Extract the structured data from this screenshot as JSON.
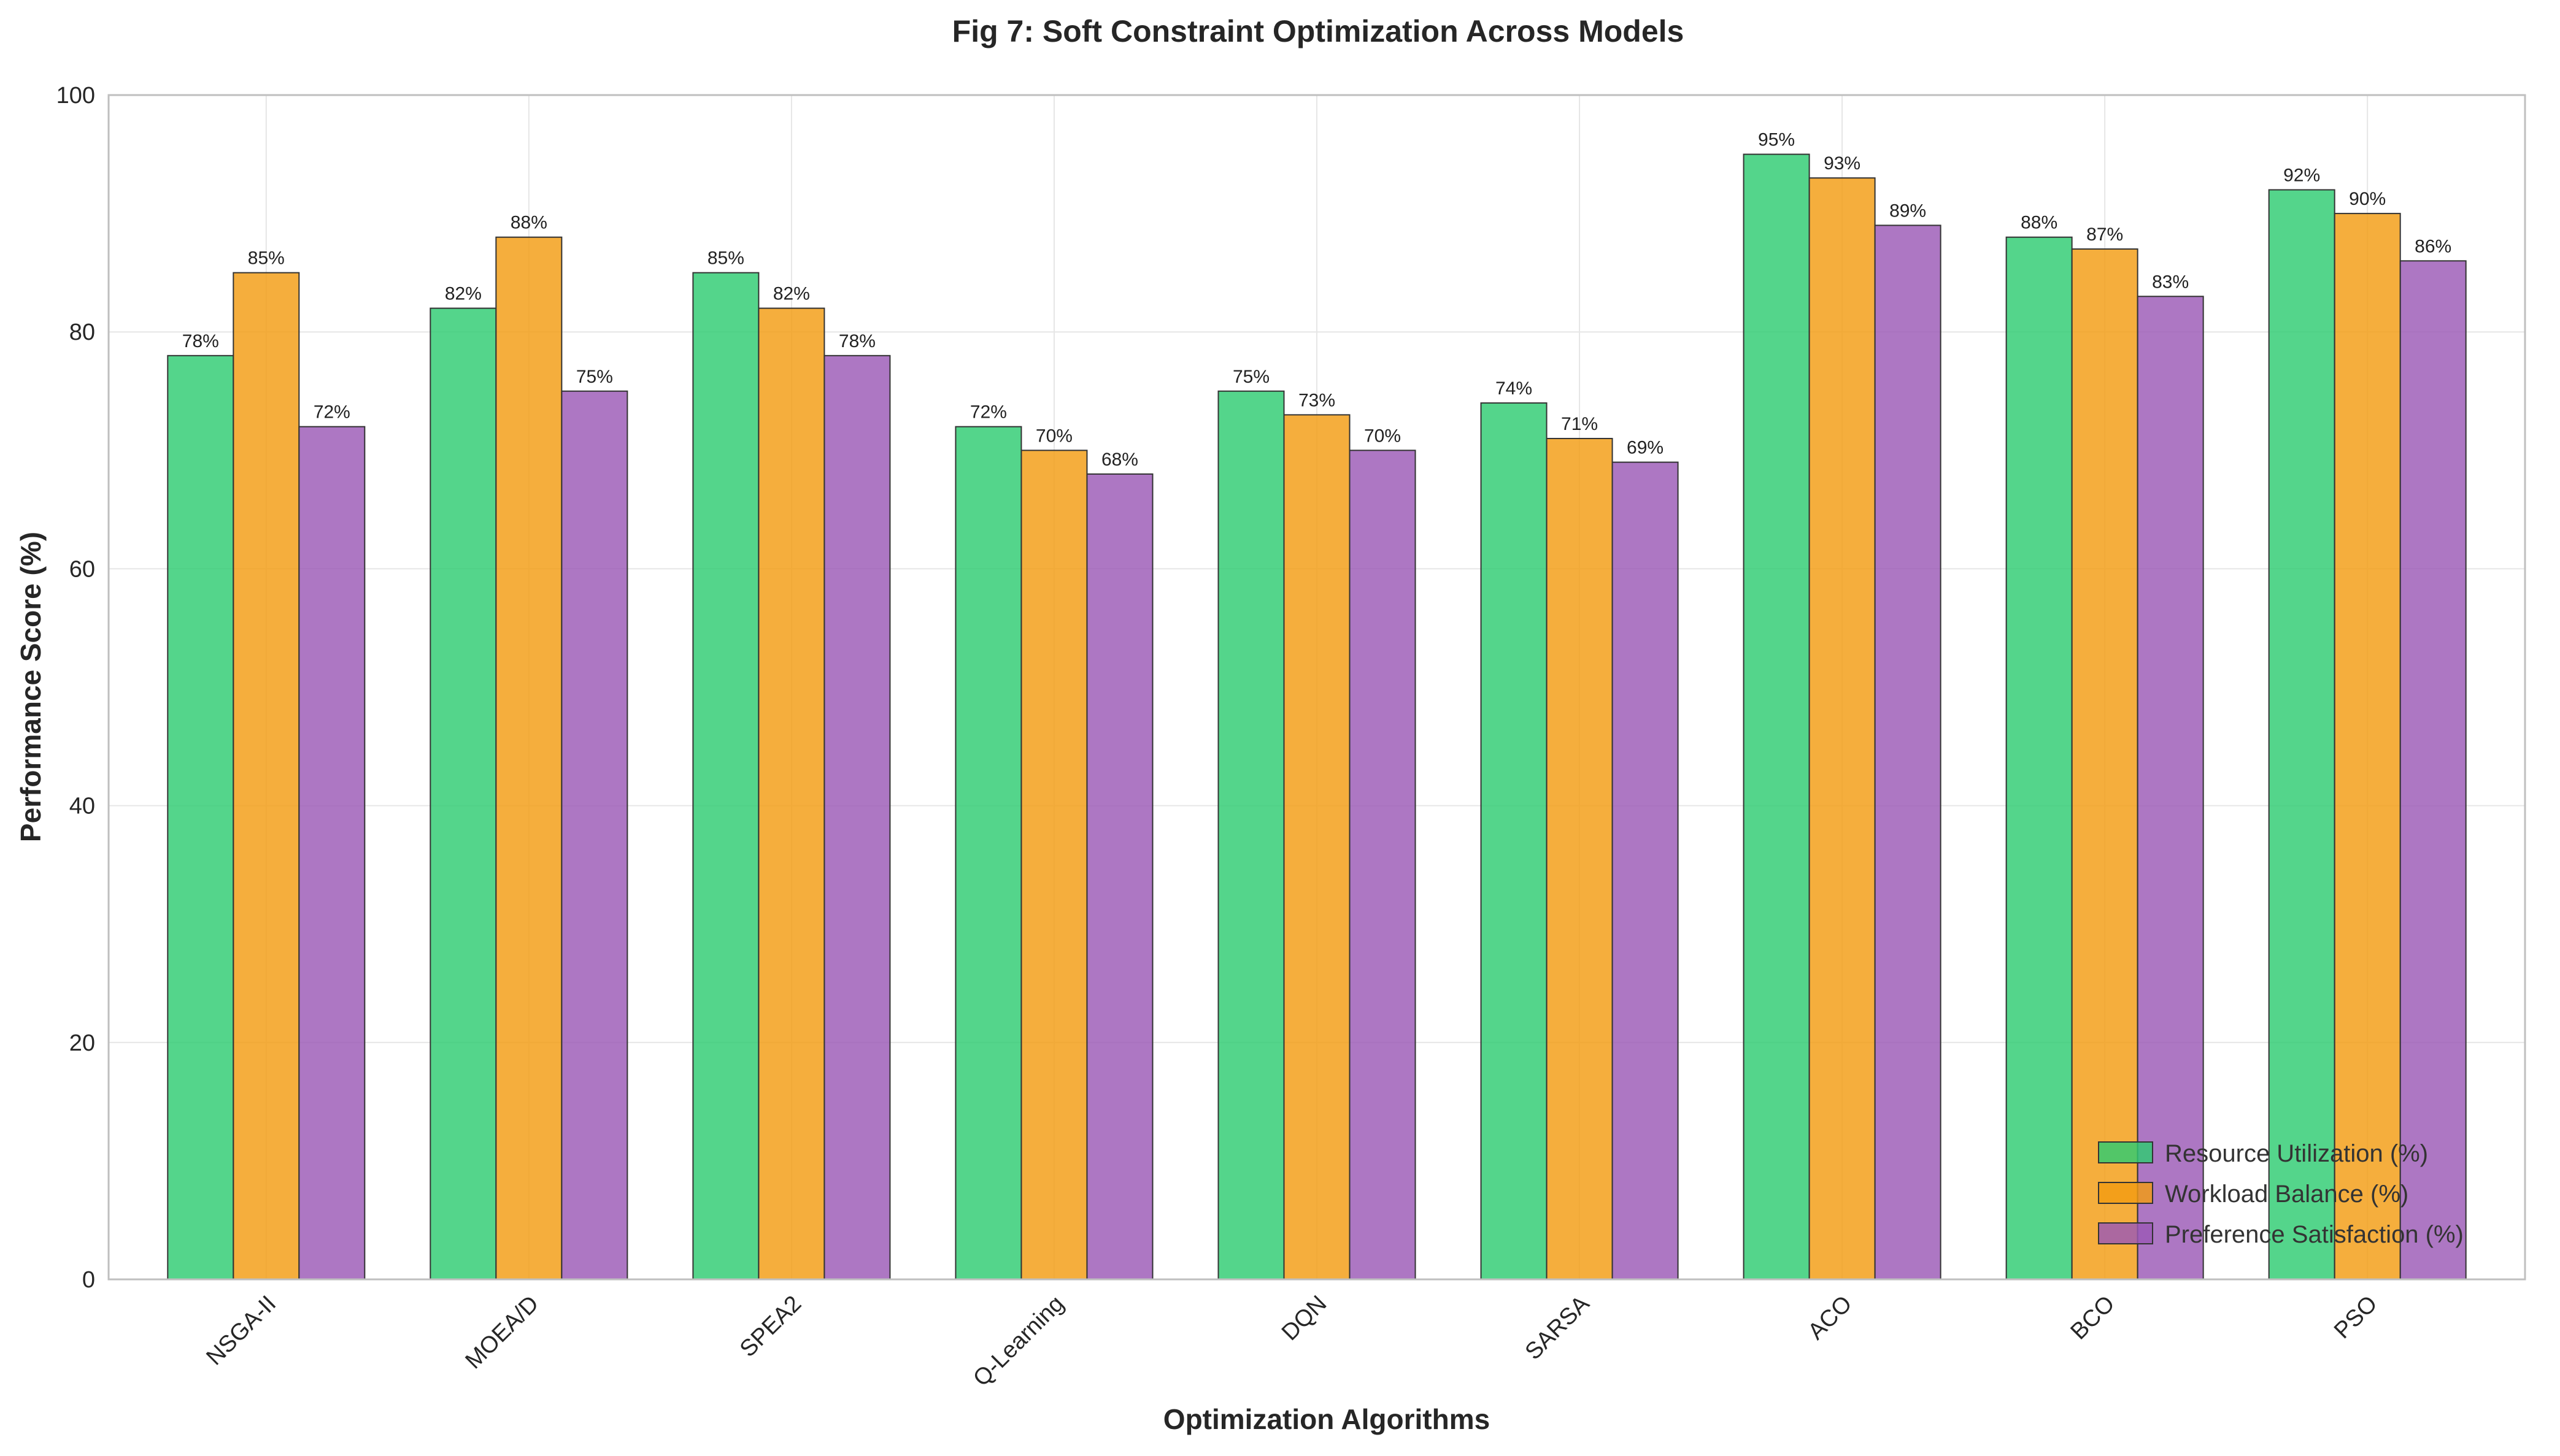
{
  "chart_data": {
    "type": "bar",
    "title": "Fig 7: Soft Constraint Optimization Across Models",
    "xlabel": "Optimization Algorithms",
    "ylabel": "Performance Score (%)",
    "ylim": [
      0,
      100
    ],
    "yticks": [
      0,
      20,
      40,
      60,
      80,
      100
    ],
    "grid": true,
    "legend_position": "bottom-right",
    "categories": [
      "NSGA-II",
      "MOEA/D",
      "SPEA2",
      "Q-Learning",
      "DQN",
      "SARSA",
      "ACO",
      "BCO",
      "PSO"
    ],
    "series": [
      {
        "name": "Resource Utilization (%)",
        "color": "#2ecc71",
        "values": [
          78,
          82,
          85,
          72,
          75,
          74,
          95,
          88,
          92
        ]
      },
      {
        "name": "Workload Balance (%)",
        "color": "#f39c12",
        "values": [
          85,
          88,
          82,
          70,
          73,
          71,
          93,
          87,
          90
        ]
      },
      {
        "name": "Preference Satisfaction (%)",
        "color": "#9b59b6",
        "values": [
          72,
          75,
          78,
          68,
          70,
          69,
          89,
          83,
          86
        ]
      }
    ],
    "data_label_suffix": "%"
  }
}
